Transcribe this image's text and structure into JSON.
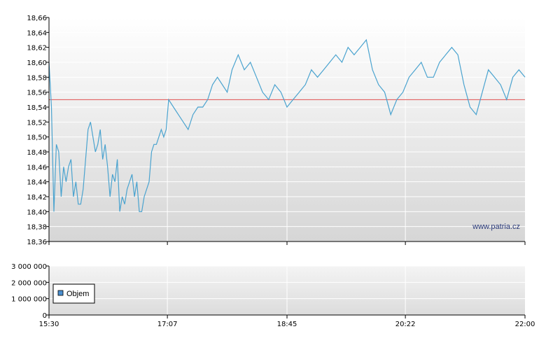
{
  "chart_data": [
    {
      "type": "line",
      "title": "",
      "xlabel": "",
      "ylabel": "",
      "x_ticks": [
        "15:30",
        "17:07",
        "18:45",
        "20:22",
        "22:00"
      ],
      "x_range": [
        "15:30",
        "22:00"
      ],
      "y_ticks": [
        "18,36",
        "18,38",
        "18,40",
        "18,42",
        "18,44",
        "18,46",
        "18,48",
        "18,50",
        "18,52",
        "18,54",
        "18,56",
        "18,58",
        "18,60",
        "18,62",
        "18,64",
        "18,66"
      ],
      "ylim": [
        18.36,
        18.66
      ],
      "grid": true,
      "reference_line": {
        "value": 18.55,
        "color": "#e05050"
      },
      "series": [
        {
          "color": "#4aa3cf",
          "x": [
            "15:30",
            "15:32",
            "15:34",
            "15:36",
            "15:38",
            "15:40",
            "15:42",
            "15:44",
            "15:46",
            "15:48",
            "15:50",
            "15:52",
            "15:54",
            "15:56",
            "15:58",
            "16:00",
            "16:02",
            "16:04",
            "16:06",
            "16:08",
            "16:10",
            "16:12",
            "16:14",
            "16:16",
            "16:18",
            "16:20",
            "16:22",
            "16:24",
            "16:26",
            "16:28",
            "16:30",
            "16:32",
            "16:34",
            "16:36",
            "16:38",
            "16:40",
            "16:42",
            "16:44",
            "16:46",
            "16:48",
            "16:50",
            "16:52",
            "16:54",
            "16:56",
            "16:58",
            "17:00",
            "17:02",
            "17:04",
            "17:06",
            "17:08",
            "17:12",
            "17:16",
            "17:20",
            "17:24",
            "17:28",
            "17:32",
            "17:36",
            "17:40",
            "17:44",
            "17:48",
            "17:52",
            "17:56",
            "18:00",
            "18:05",
            "18:10",
            "18:15",
            "18:20",
            "18:25",
            "18:30",
            "18:35",
            "18:40",
            "18:45",
            "18:50",
            "18:55",
            "19:00",
            "19:05",
            "19:10",
            "19:15",
            "19:20",
            "19:25",
            "19:30",
            "19:35",
            "19:40",
            "19:45",
            "19:50",
            "19:55",
            "20:00",
            "20:05",
            "20:10",
            "20:15",
            "20:20",
            "20:25",
            "20:30",
            "20:35",
            "20:40",
            "20:45",
            "20:50",
            "20:55",
            "21:00",
            "21:05",
            "21:10",
            "21:15",
            "21:20",
            "21:25",
            "21:30",
            "21:35",
            "21:40",
            "21:45",
            "21:50",
            "21:55",
            "22:00"
          ],
          "values": [
            18.6,
            18.54,
            18.4,
            18.49,
            18.48,
            18.42,
            18.46,
            18.44,
            18.46,
            18.47,
            18.42,
            18.44,
            18.41,
            18.41,
            18.43,
            18.47,
            18.51,
            18.52,
            18.5,
            18.48,
            18.49,
            18.51,
            18.47,
            18.49,
            18.46,
            18.42,
            18.45,
            18.44,
            18.47,
            18.4,
            18.42,
            18.41,
            18.43,
            18.44,
            18.45,
            18.42,
            18.44,
            18.4,
            18.4,
            18.42,
            18.43,
            18.44,
            18.48,
            18.49,
            18.49,
            18.5,
            18.51,
            18.5,
            18.51,
            18.55,
            18.54,
            18.53,
            18.52,
            18.51,
            18.53,
            18.54,
            18.54,
            18.55,
            18.57,
            18.58,
            18.57,
            18.56,
            18.59,
            18.61,
            18.59,
            18.6,
            18.58,
            18.56,
            18.55,
            18.57,
            18.56,
            18.54,
            18.55,
            18.56,
            18.57,
            18.59,
            18.58,
            18.59,
            18.6,
            18.61,
            18.6,
            18.62,
            18.61,
            18.62,
            18.63,
            18.59,
            18.57,
            18.56,
            18.53,
            18.55,
            18.56,
            18.58,
            18.59,
            18.6,
            18.58,
            18.58,
            18.6,
            18.61,
            18.62,
            18.61,
            18.57,
            18.54,
            18.53,
            18.56,
            18.59,
            18.58,
            18.57,
            18.55,
            18.58,
            18.59,
            18.58
          ]
        }
      ],
      "watermark": "www.patria.cz"
    },
    {
      "type": "bar",
      "title": "",
      "xlabel": "",
      "ylabel": "",
      "x_ticks": [
        "15:30",
        "17:07",
        "18:45",
        "20:22",
        "22:00"
      ],
      "y_ticks": [
        "0",
        "1 000 000",
        "2 000 000",
        "3 000 000"
      ],
      "ylim": [
        0,
        3000000
      ],
      "grid": true,
      "legend": {
        "position": "left",
        "entries": [
          {
            "name": "Objem",
            "color": "#4a8fd0"
          }
        ]
      },
      "series": [
        {
          "name": "Objem",
          "values": []
        }
      ]
    }
  ]
}
